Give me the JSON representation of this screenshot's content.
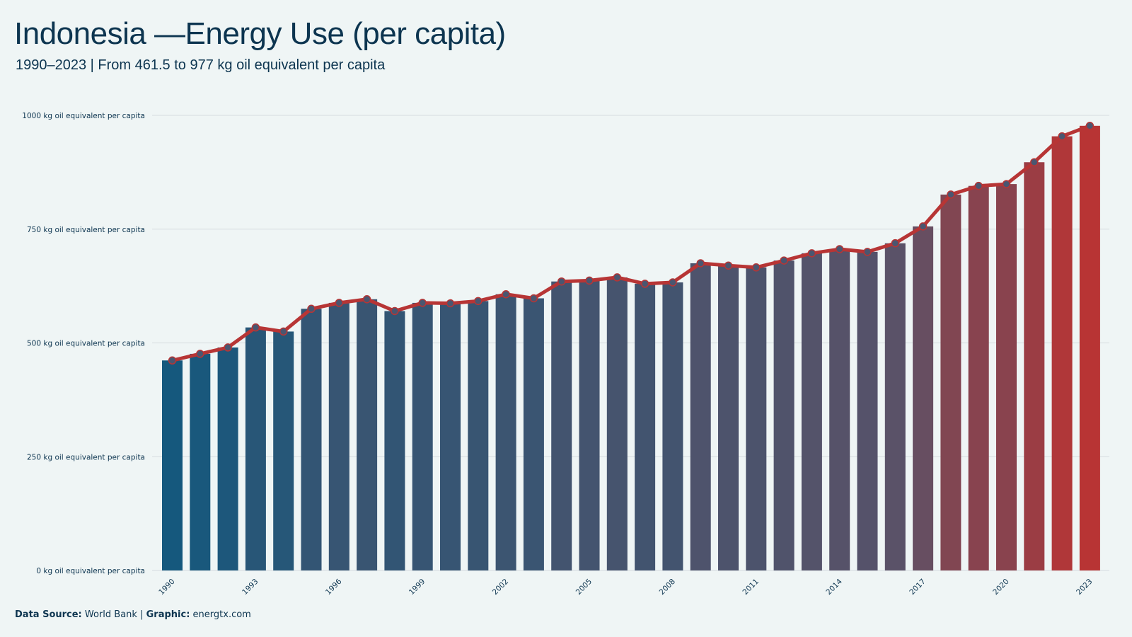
{
  "header": {
    "title": "Indonesia —Energy Use (per capita)",
    "subtitle": "1990–2023 | From 461.5 to 977 kg oil equivalent per capita"
  },
  "footer": {
    "source_label": "Data Source:",
    "source_value": "World Bank",
    "separator": "|",
    "graphic_label": "Graphic:",
    "graphic_value": "energtx.com"
  },
  "colors": {
    "background": "#eff5f5",
    "bar_start": "#15587d",
    "bar_mid": "#5a5268",
    "bar_end": "#b83434",
    "line": "#b73535",
    "marker_fill": "#4a5670",
    "gridline": "#d5dcdf",
    "text": "#0d3550"
  },
  "chart_data": {
    "type": "bar",
    "overlay": "line-with-markers",
    "x": [
      1990,
      1991,
      1992,
      1993,
      1994,
      1995,
      1996,
      1997,
      1998,
      1999,
      2000,
      2001,
      2002,
      2003,
      2004,
      2005,
      2006,
      2007,
      2008,
      2009,
      2010,
      2011,
      2012,
      2013,
      2014,
      2015,
      2016,
      2017,
      2018,
      2019,
      2020,
      2021,
      2022,
      2023
    ],
    "values": [
      461.5,
      476,
      490,
      534,
      525,
      575,
      588,
      596,
      570,
      588,
      587,
      592,
      607,
      598,
      635,
      637,
      644,
      630,
      633,
      675,
      670,
      666,
      681,
      697,
      706,
      700,
      719,
      756,
      826,
      845,
      849,
      897,
      954,
      977
    ],
    "x_tick_labels": [
      "1990",
      "1993",
      "1996",
      "1999",
      "2002",
      "2005",
      "2008",
      "2011",
      "2014",
      "2017",
      "2020",
      "2023"
    ],
    "y_tick_labels": [
      "0 kg oil equivalent per capita",
      "250 kg oil equivalent per capita",
      "500 kg oil equivalent per capita",
      "750 kg oil equivalent per capita",
      "1000 kg oil equivalent per capita"
    ],
    "y_ticks": [
      0,
      250,
      500,
      750,
      1000
    ],
    "ylim": [
      0,
      1000
    ],
    "grid": "horizontal",
    "legend": "none"
  }
}
